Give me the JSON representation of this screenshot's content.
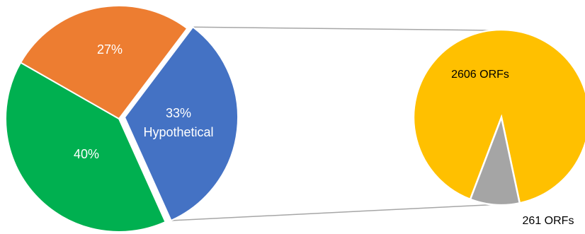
{
  "chart_data": [
    {
      "type": "pie",
      "slices": [
        {
          "value": 33,
          "label": "33%",
          "sublabel": "Hypothetical",
          "color": "#4472C4"
        },
        {
          "value": 40,
          "label": "40%",
          "sublabel": "",
          "color": "#00B050"
        },
        {
          "value": 27,
          "label": "27%",
          "sublabel": "",
          "color": "#ED7D31"
        }
      ],
      "label_color": "#FFFFFF",
      "exploded_slice": 0
    },
    {
      "type": "pie",
      "slices": [
        {
          "value": 2606,
          "label": "2606 ORFs",
          "color": "#FFC000",
          "label_color": "#000000"
        },
        {
          "value": 261,
          "label": "261 ORFs",
          "color": "#A5A5A5",
          "label_color": "#000000"
        }
      ]
    }
  ],
  "connector_color": "#A6A6A6"
}
